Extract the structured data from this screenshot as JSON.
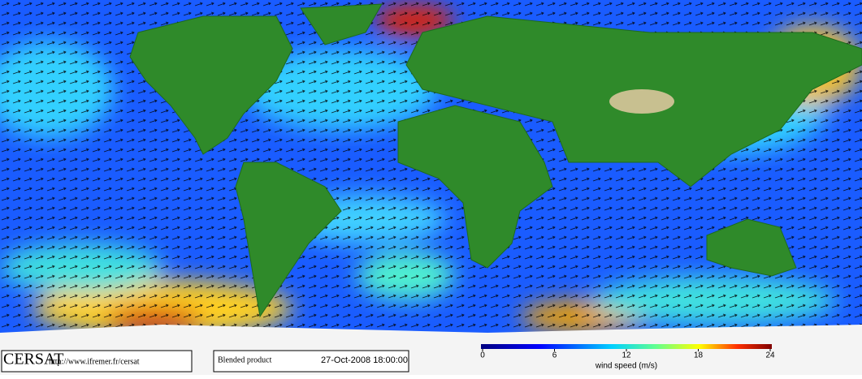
{
  "footer": {
    "logo": "CERSAT",
    "url": "http://www.ifremer.fr/cersat",
    "product": "Blended product",
    "date": "27-Oct-2008 18:00:00"
  },
  "colorbar": {
    "label": "wind speed (m/s)",
    "range": [
      0,
      24
    ],
    "ticks": [
      0,
      6,
      12,
      18,
      24
    ]
  }
}
